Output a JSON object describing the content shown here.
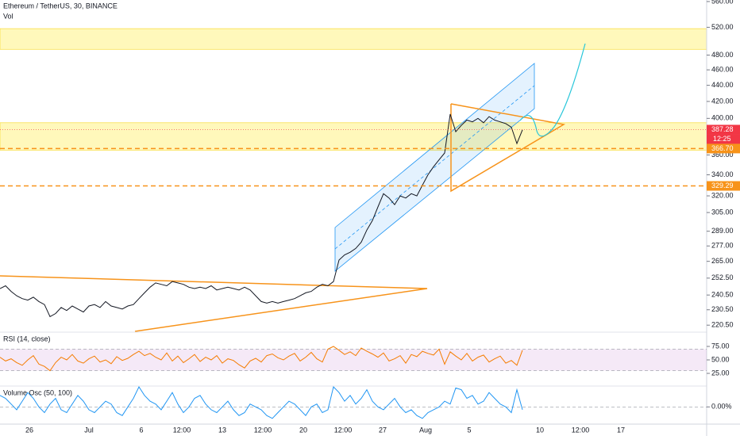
{
  "chart_data": [
    {
      "type": "line",
      "title": "Ethereum / TetherUS, 30, BINANCE",
      "subtitle": "Vol",
      "color": "#131722",
      "log_scale": true,
      "ylim": [
        216.6,
        562.5
      ],
      "yticks": [
        {
          "value": 220.5,
          "label": "220.50"
        },
        {
          "value": 230.5,
          "label": "230.50"
        },
        {
          "value": 240.5,
          "label": "240.50"
        },
        {
          "value": 252.5,
          "label": "252.50"
        },
        {
          "value": 265,
          "label": "265.00"
        },
        {
          "value": 277,
          "label": "277.00"
        },
        {
          "value": 289,
          "label": "289.00"
        },
        {
          "value": 305,
          "label": "305.00"
        },
        {
          "value": 320,
          "label": "320.00"
        },
        {
          "value": 340,
          "label": "340.00"
        },
        {
          "value": 360,
          "label": "360.00"
        },
        {
          "value": 400,
          "label": "400.00"
        },
        {
          "value": 420,
          "label": "420.00"
        },
        {
          "value": 440,
          "label": "440.00"
        },
        {
          "value": 460,
          "label": "460.00"
        },
        {
          "value": 480,
          "label": "480.00"
        },
        {
          "value": 520,
          "label": "520.00"
        },
        {
          "value": 560,
          "label": "560.00"
        }
      ],
      "zones": [
        [
          488,
          518
        ],
        [
          365,
          395
        ]
      ],
      "price_markers": [
        {
          "value": 387.28,
          "label": "387.28",
          "color": "#f23645"
        },
        {
          "value": 366.7,
          "label": "366.70",
          "color": "#f7931a"
        },
        {
          "value": 329.29,
          "label": "329.29",
          "color": "#f7931a"
        }
      ],
      "countdown": "12:25",
      "values": [
        245,
        247,
        243,
        240,
        238,
        237,
        239,
        236,
        234,
        226,
        228,
        232,
        230,
        233,
        231,
        229,
        233,
        234,
        232,
        236,
        233,
        232,
        231,
        233,
        234,
        238,
        242,
        246,
        249,
        248,
        247,
        250,
        249,
        248,
        246,
        245,
        246,
        245,
        247,
        244,
        245,
        246,
        245,
        244,
        246,
        244,
        240,
        236,
        235,
        236,
        235,
        236,
        237,
        238,
        240,
        242,
        243,
        246,
        248,
        247,
        250,
        266,
        270,
        272,
        275,
        280,
        290,
        298,
        310,
        322,
        318,
        312,
        320,
        318,
        322,
        320,
        330,
        340,
        348,
        355,
        362,
        405,
        385,
        392,
        398,
        396,
        400,
        395,
        402,
        398,
        396,
        394,
        390,
        372,
        387
      ]
    },
    {
      "type": "line",
      "title": "RSI (14, close)",
      "color": "#f57c00",
      "ylim": [
        0,
        100
      ],
      "band": [
        30,
        70
      ],
      "band_color": "#9c27b0",
      "yticks": [
        {
          "value": 25,
          "label": "25.00"
        },
        {
          "value": 50,
          "label": "50.00"
        },
        {
          "value": 75,
          "label": "75.00"
        }
      ],
      "values": [
        55,
        48,
        52,
        45,
        40,
        50,
        58,
        42,
        38,
        30,
        45,
        55,
        50,
        60,
        48,
        44,
        52,
        57,
        46,
        50,
        43,
        56,
        49,
        53,
        60,
        66,
        58,
        62,
        55,
        50,
        63,
        48,
        57,
        45,
        52,
        60,
        47,
        55,
        50,
        58,
        44,
        52,
        49,
        41,
        35,
        48,
        53,
        46,
        58,
        61,
        54,
        50,
        57,
        62,
        48,
        55,
        64,
        52,
        46,
        70,
        75,
        68,
        60,
        65,
        58,
        72,
        66,
        61,
        55,
        63,
        48,
        52,
        58,
        44,
        60,
        56,
        66,
        62,
        59,
        70,
        42,
        65,
        57,
        50,
        62,
        48,
        55,
        59,
        46,
        52,
        57,
        44,
        49,
        40,
        68
      ]
    },
    {
      "type": "line",
      "title": "Volume Osc (50, 100)",
      "color": "#2196f3",
      "ylim": [
        -30,
        35
      ],
      "yticks": [
        {
          "value": 0,
          "label": "0.00%"
        }
      ],
      "values": [
        20,
        15,
        5,
        -5,
        10,
        25,
        15,
        0,
        -10,
        5,
        15,
        -5,
        -10,
        5,
        20,
        10,
        -5,
        -10,
        0,
        10,
        5,
        -10,
        -15,
        0,
        15,
        35,
        20,
        10,
        5,
        -5,
        10,
        25,
        5,
        -10,
        0,
        15,
        20,
        5,
        -5,
        -10,
        0,
        10,
        -5,
        -15,
        -10,
        5,
        0,
        -5,
        -15,
        -20,
        -10,
        0,
        10,
        5,
        -5,
        -15,
        0,
        5,
        -10,
        -5,
        35,
        25,
        10,
        20,
        5,
        15,
        30,
        10,
        0,
        -5,
        5,
        15,
        0,
        -10,
        -5,
        -15,
        -20,
        -10,
        -5,
        0,
        10,
        5,
        33,
        30,
        15,
        20,
        5,
        10,
        25,
        15,
        5,
        0,
        -10,
        30,
        -5
      ]
    }
  ],
  "time_axis": [
    "26",
    "Jul",
    "6",
    "12:00",
    "13",
    "12:00",
    "20",
    "12:00",
    "27",
    "Aug",
    "5",
    "10",
    "12:00",
    "17"
  ]
}
